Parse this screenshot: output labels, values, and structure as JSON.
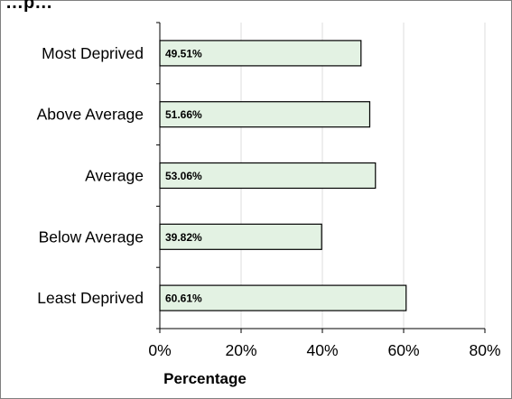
{
  "chart_data": {
    "type": "bar",
    "orientation": "horizontal",
    "title": "…p…",
    "categories": [
      "Most Deprived",
      "Above Average",
      "Average",
      "Below Average",
      "Least Deprived"
    ],
    "values": [
      49.51,
      51.66,
      53.06,
      39.82,
      60.61
    ],
    "data_labels": [
      "49.51%",
      "51.66%",
      "53.06%",
      "39.82%",
      "60.61%"
    ],
    "xlabel": "Percentage",
    "ylabel": "",
    "xlim": [
      0,
      80
    ],
    "x_ticks": [
      0,
      20,
      40,
      60,
      80
    ],
    "x_tick_labels": [
      "0%",
      "20%",
      "40%",
      "60%",
      "80%"
    ],
    "grid": "vertical",
    "legend": "none",
    "bar_fill": "#e3f2e3",
    "bar_stroke": "#000000",
    "grid_color": "#dcdcdc"
  }
}
